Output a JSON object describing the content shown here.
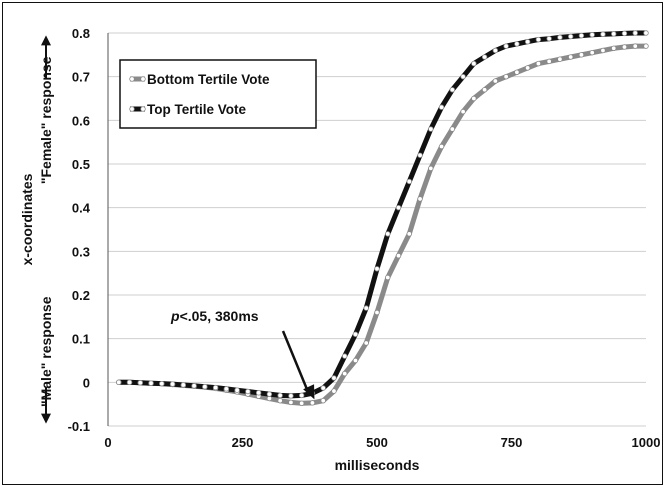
{
  "chart_data": {
    "type": "line",
    "xlabel": "milliseconds",
    "ylabel_title": "x-coordinates",
    "ylabel_top": "\"Female\" response",
    "ylabel_bottom": "\"Male\" response",
    "xlim": [
      0,
      1000
    ],
    "ylim": [
      -0.1,
      0.8
    ],
    "xticks": [
      0,
      250,
      500,
      750,
      1000
    ],
    "yticks": [
      -0.1,
      0,
      0.1,
      0.2,
      0.3,
      0.4,
      0.5,
      0.6,
      0.7,
      0.8
    ],
    "ytick_labels": [
      "-0.1",
      "0",
      "0.1",
      "0.2",
      "0.3",
      "0.4",
      "0.5",
      "0.6",
      "0.7",
      "0.8"
    ],
    "grid": true,
    "legend_position": "top-left",
    "annotation": {
      "italic": "p",
      "text": "<.05, 380ms",
      "x": 380,
      "y": -0.03
    },
    "x": [
      20,
      40,
      60,
      80,
      100,
      120,
      140,
      160,
      180,
      200,
      220,
      240,
      260,
      280,
      300,
      320,
      340,
      360,
      380,
      400,
      420,
      440,
      460,
      480,
      500,
      520,
      540,
      560,
      580,
      600,
      620,
      640,
      660,
      680,
      700,
      720,
      740,
      760,
      780,
      800,
      820,
      840,
      860,
      880,
      900,
      920,
      940,
      960,
      980,
      1000
    ],
    "series": [
      {
        "name": "Bottom Tertile Vote",
        "color": "#8a8a8a",
        "values": [
          0,
          0,
          -0.001,
          -0.002,
          -0.003,
          -0.005,
          -0.007,
          -0.009,
          -0.011,
          -0.014,
          -0.018,
          -0.022,
          -0.027,
          -0.032,
          -0.037,
          -0.042,
          -0.046,
          -0.048,
          -0.047,
          -0.042,
          -0.02,
          0.02,
          0.05,
          0.09,
          0.16,
          0.24,
          0.29,
          0.34,
          0.42,
          0.49,
          0.54,
          0.58,
          0.62,
          0.65,
          0.67,
          0.69,
          0.7,
          0.71,
          0.72,
          0.73,
          0.735,
          0.74,
          0.745,
          0.75,
          0.755,
          0.76,
          0.765,
          0.768,
          0.77,
          0.77
        ]
      },
      {
        "name": "Top Tertile Vote",
        "color": "#111111",
        "values": [
          0,
          0,
          -0.001,
          -0.002,
          -0.003,
          -0.004,
          -0.006,
          -0.008,
          -0.01,
          -0.012,
          -0.015,
          -0.018,
          -0.021,
          -0.024,
          -0.027,
          -0.03,
          -0.031,
          -0.03,
          -0.025,
          -0.013,
          0.01,
          0.06,
          0.11,
          0.17,
          0.26,
          0.34,
          0.4,
          0.46,
          0.52,
          0.58,
          0.63,
          0.67,
          0.7,
          0.73,
          0.745,
          0.76,
          0.77,
          0.775,
          0.78,
          0.785,
          0.787,
          0.79,
          0.792,
          0.794,
          0.796,
          0.797,
          0.798,
          0.799,
          0.8,
          0.8
        ]
      }
    ]
  }
}
